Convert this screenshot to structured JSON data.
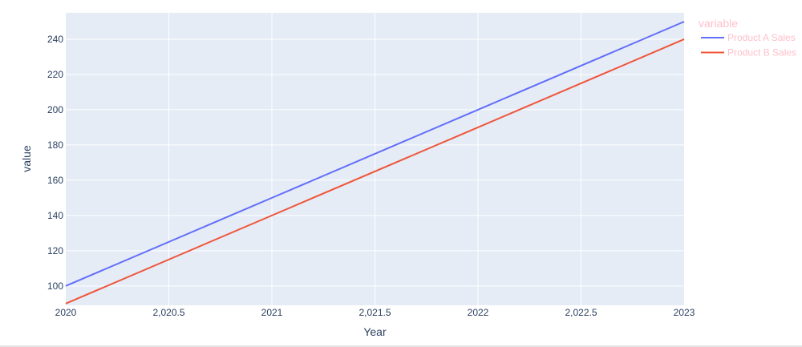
{
  "chart_data": {
    "type": "line",
    "xlabel": "Year",
    "ylabel": "value",
    "legend_title": "variable",
    "legend_position": "right-outside-top",
    "grid": true,
    "xlim": [
      2020,
      2023
    ],
    "ylim": [
      89,
      255
    ],
    "x_ticks": [
      2020,
      2020.5,
      2021,
      2021.5,
      2022,
      2022.5,
      2023
    ],
    "x_tick_labels": [
      "2020",
      "2,020.5",
      "2021",
      "2,021.5",
      "2022",
      "2,022.5",
      "2023"
    ],
    "y_ticks": [
      100,
      120,
      140,
      160,
      180,
      200,
      220,
      240
    ],
    "y_tick_labels": [
      "100",
      "120",
      "140",
      "160",
      "180",
      "200",
      "220",
      "240"
    ],
    "x": [
      2020,
      2021,
      2022,
      2023
    ],
    "series": [
      {
        "name": "Product A Sales",
        "values": [
          100,
          150,
          200,
          250
        ],
        "color": "#636efa"
      },
      {
        "name": "Product B Sales",
        "values": [
          90,
          140,
          190,
          240
        ],
        "color": "#ef553b"
      }
    ]
  },
  "colors": {
    "plot_background": "#e5ecf6",
    "grid": "#ffffff",
    "tick_text": "#2a3f5f",
    "legend_text": "#ffc0cb"
  }
}
